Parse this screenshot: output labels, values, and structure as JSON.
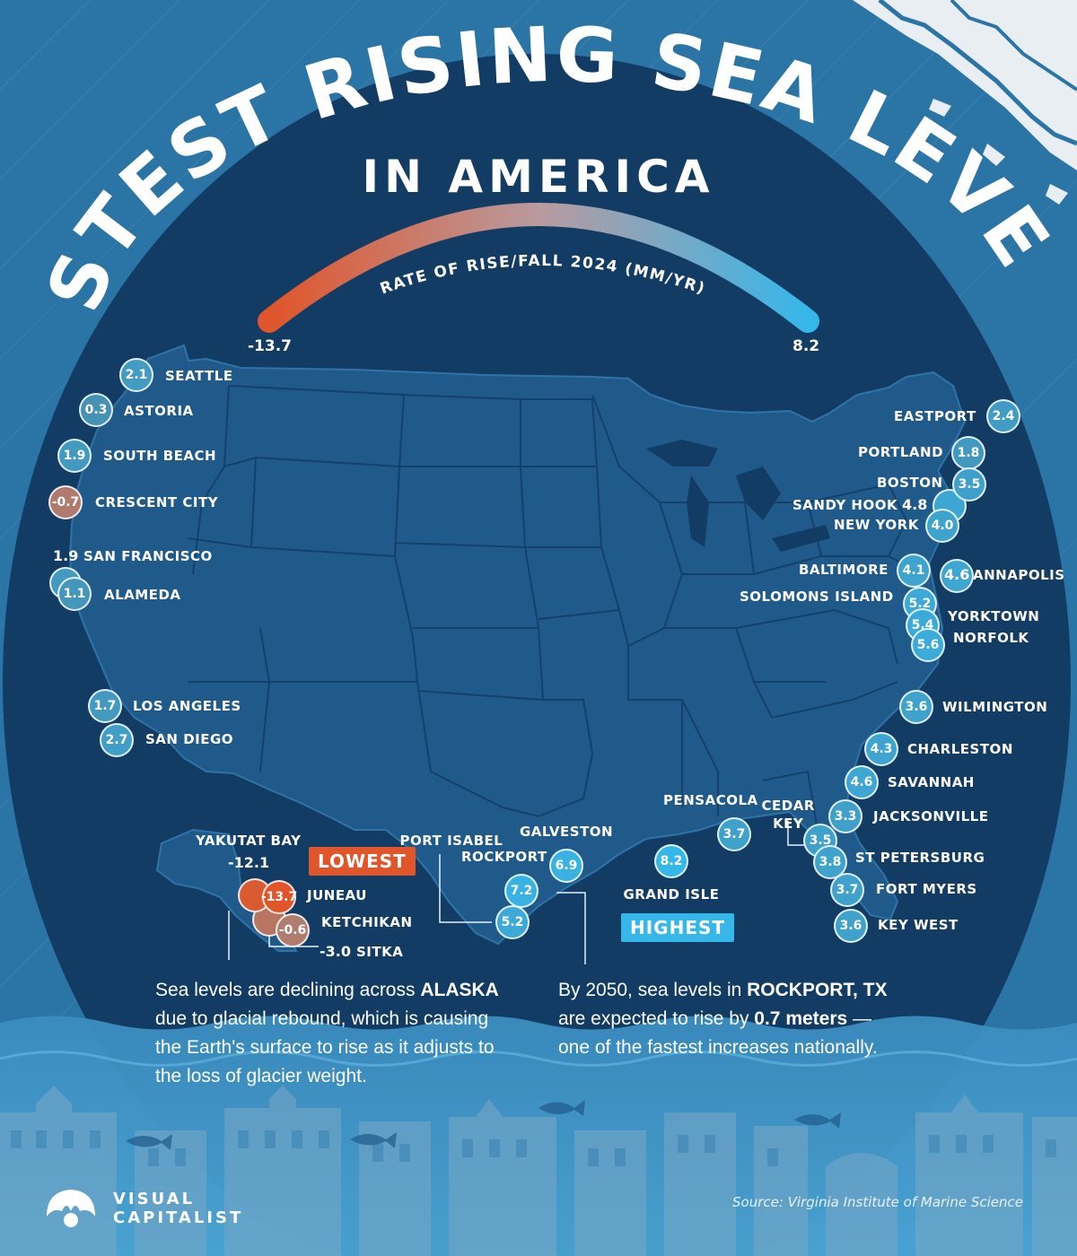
{
  "title": "FASTEST RISING SEA LEVELS",
  "subtitle": "IN AMERICA",
  "scale": {
    "label": "RATE OF RISE/FALL 2024 (MM/YR)",
    "min_label": "-13.7",
    "max_label": "8.2",
    "min": -13.7,
    "max": 8.2,
    "low_color": "#e0552a",
    "high_color": "#36b7ea"
  },
  "tags": {
    "lowest": "LOWEST",
    "highest": "HIGHEST"
  },
  "notes": {
    "alaska": {
      "p1": "Sea levels are declining across ",
      "b1": "ALASKA",
      "p2": " due to glacial rebound, which is causing the Earth's surface to rise as it adjusts to the loss of glacier weight."
    },
    "rockport": {
      "p1": "By 2050, sea levels in ",
      "b1": "ROCKPORT, TX",
      "p2": " are expected to rise by ",
      "b2": "0.7 meters",
      "p3": " —one of the fastest increases nationally."
    }
  },
  "source": "Source: Virginia Institute of Marine Science",
  "brand": {
    "line1": "VISUAL",
    "line2": "CAPITALIST"
  },
  "colors": {
    "ocean": "#2a74a6",
    "disc": "#123c64",
    "land": "#1f5a8a",
    "water_band": "#3f8fbf"
  },
  "chart_data": {
    "type": "scatter",
    "title": "FASTEST RISING SEA LEVELS",
    "subtitle": "IN AMERICA",
    "value_label": "RATE OF RISE/FALL 2024 (MM/YR)",
    "value_range": [
      -13.7,
      8.2
    ],
    "stations": [
      {
        "name": "SEATTLE",
        "label": "2.1",
        "value": 2.1
      },
      {
        "name": "ASTORIA",
        "label": "0.3",
        "value": 0.3
      },
      {
        "name": "SOUTH BEACH",
        "label": "1.9",
        "value": 1.9
      },
      {
        "name": "CRESCENT CITY",
        "label": "-0.7",
        "value": -0.7
      },
      {
        "name": "SAN FRANCISCO",
        "label": "1.9",
        "value": 1.9
      },
      {
        "name": "ALAMEDA",
        "label": "1.1",
        "value": 1.1
      },
      {
        "name": "LOS ANGELES",
        "label": "1.7",
        "value": 1.7
      },
      {
        "name": "SAN DIEGO",
        "label": "2.7",
        "value": 2.7
      },
      {
        "name": "EASTPORT",
        "label": "2.4",
        "value": 2.4
      },
      {
        "name": "PORTLAND",
        "label": "1.8",
        "value": 1.8
      },
      {
        "name": "BOSTON",
        "label": "3.5",
        "value": 3.5
      },
      {
        "name": "SANDY HOOK",
        "label": "4.8",
        "value": 4.8
      },
      {
        "name": "NEW YORK",
        "label": "4.0",
        "value": 4.0
      },
      {
        "name": "BALTIMORE",
        "label": "4.1",
        "value": 4.1
      },
      {
        "name": "ANNAPOLIS",
        "label": "4.6",
        "value": 4.6
      },
      {
        "name": "SOLOMONS ISLAND",
        "label": "5.2",
        "value": 5.2
      },
      {
        "name": "YORKTOWN",
        "label": "5.4",
        "value": 5.4
      },
      {
        "name": "NORFOLK",
        "label": "5.6",
        "value": 5.6
      },
      {
        "name": "WILMINGTON",
        "label": "3.6",
        "value": 3.6
      },
      {
        "name": "CHARLESTON",
        "label": "4.3",
        "value": 4.3
      },
      {
        "name": "SAVANNAH",
        "label": "4.6",
        "value": 4.6
      },
      {
        "name": "JACKSONVILLE",
        "label": "3.3",
        "value": 3.3
      },
      {
        "name": "CEDAR KEY",
        "label": "3.5",
        "value": 3.5
      },
      {
        "name": "ST PETERSBURG",
        "label": "3.8",
        "value": 3.8
      },
      {
        "name": "FORT MYERS",
        "label": "3.7",
        "value": 3.7
      },
      {
        "name": "KEY WEST",
        "label": "3.6",
        "value": 3.6
      },
      {
        "name": "PENSACOLA",
        "label": "3.7",
        "value": 3.7
      },
      {
        "name": "GRAND ISLE",
        "label": "8.2",
        "value": 8.2
      },
      {
        "name": "GALVESTON",
        "label": "6.9",
        "value": 6.9
      },
      {
        "name": "ROCKPORT",
        "label": "7.2",
        "value": 7.2
      },
      {
        "name": "PORT ISABEL",
        "label": "5.2",
        "value": 5.2
      },
      {
        "name": "YAKUTAT BAY",
        "label": "-12.1",
        "value": -12.1
      },
      {
        "name": "JUNEAU",
        "label": "-13.7",
        "value": -13.7
      },
      {
        "name": "KETCHIKAN",
        "label": "-0.6",
        "value": -0.6
      },
      {
        "name": "SITKA",
        "label": "-3.0",
        "value": -3.0
      }
    ]
  }
}
